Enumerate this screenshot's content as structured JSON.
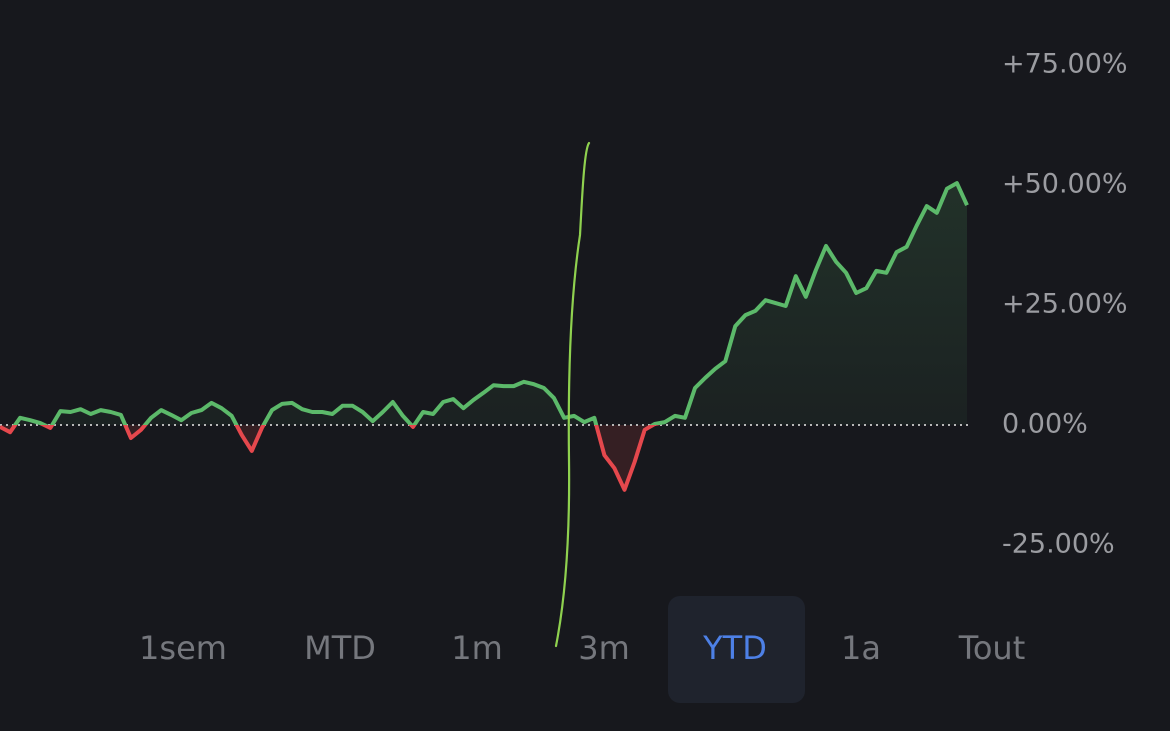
{
  "chart_data": {
    "type": "line",
    "values": [
      -0.4,
      -1.5,
      1.5,
      1.0,
      0.4,
      -0.6,
      2.9,
      2.7,
      3.3,
      2.3,
      3.1,
      2.7,
      2.1,
      -2.7,
      -1.0,
      1.5,
      3.1,
      2.1,
      1.0,
      2.5,
      3.1,
      4.6,
      3.5,
      1.9,
      -2.1,
      -5.4,
      -0.6,
      3.1,
      4.4,
      4.6,
      3.3,
      2.7,
      2.7,
      2.3,
      4.0,
      4.0,
      2.7,
      0.8,
      2.7,
      4.8,
      1.9,
      -0.4,
      2.7,
      2.3,
      4.8,
      5.4,
      3.5,
      5.2,
      6.7,
      8.3,
      8.1,
      8.1,
      9.0,
      8.5,
      7.7,
      5.6,
      1.5,
      1.9,
      0.6,
      1.5,
      -6.3,
      -9.0,
      -13.5,
      -7.7,
      -1.0,
      0.2,
      0.6,
      1.9,
      1.5,
      7.7,
      9.8,
      11.7,
      13.3,
      20.6,
      22.9,
      23.8,
      26.0,
      25.4,
      24.8,
      31.0,
      26.7,
      32.3,
      37.3,
      34.0,
      31.7,
      27.5,
      28.5,
      32.1,
      31.7,
      36.0,
      37.1,
      41.5,
      45.6,
      44.2,
      49.2,
      50.4,
      45.8
    ],
    "ylim": [
      -37.5,
      87.5
    ],
    "yticks": [
      {
        "value": 75,
        "label": "+75.00%"
      },
      {
        "value": 50,
        "label": "+50.00%"
      },
      {
        "value": 25,
        "label": "+25.00%"
      },
      {
        "value": 0,
        "label": "0.00%"
      },
      {
        "value": -25,
        "label": "-25.00%"
      }
    ],
    "up_color": "#5cb96a",
    "down_color": "#e5484d"
  },
  "ranges": [
    "1sem",
    "MTD",
    "1m",
    "3m",
    "YTD",
    "1a",
    "Tout"
  ],
  "selected_range": 4
}
